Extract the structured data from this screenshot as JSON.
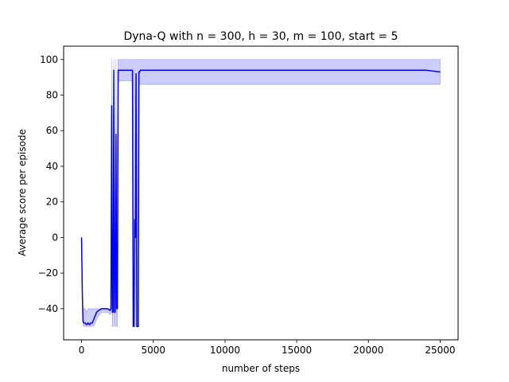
{
  "chart_data": {
    "type": "line",
    "title": "Dyna-Q with n = 300, h = 30, m = 100, start = 5",
    "xlabel": "number of steps",
    "ylabel": "Average score per episode",
    "xlim": [
      -1250,
      26250
    ],
    "ylim": [
      -57.5,
      107.5
    ],
    "xticks": [
      0,
      5000,
      10000,
      15000,
      20000,
      25000
    ],
    "xtick_labels": [
      "0",
      "5000",
      "10000",
      "15000",
      "20000",
      "25000"
    ],
    "yticks": [
      -40,
      -20,
      0,
      20,
      40,
      60,
      80,
      100
    ],
    "ytick_labels": [
      "−40",
      "−20",
      "0",
      "20",
      "40",
      "60",
      "80",
      "100"
    ],
    "grid": false,
    "legend": "none",
    "line_color": "#0000ff",
    "band_color": "#0000ff",
    "band_opacity": 0.2,
    "series": [
      {
        "x": [
          0,
          50,
          100,
          150,
          250,
          350,
          450,
          550,
          650,
          750,
          850,
          950,
          1050,
          1200,
          1400,
          1600,
          1800,
          2000,
          2050,
          2100,
          2150,
          2200,
          2250,
          2300,
          2350,
          2400,
          2450,
          2500,
          2550,
          2600,
          2650,
          2700,
          2750,
          2800,
          2850,
          2900,
          3000,
          3200,
          3400,
          3500,
          3550,
          3600,
          3650,
          3700,
          3750,
          3800,
          3850,
          3900,
          3950,
          4000,
          4050,
          4100,
          4150,
          4200,
          4250,
          4300,
          4350,
          4400,
          4450,
          4500,
          5000,
          6000,
          7000,
          8000,
          9000,
          10000,
          11000,
          12000,
          13000,
          14000,
          15000,
          16000,
          17000,
          18000,
          19000,
          20000,
          21000,
          22000,
          23000,
          24000,
          25000
        ],
        "y": [
          0,
          -30,
          -47,
          -48,
          -48,
          -49,
          -48,
          -49,
          -48,
          -48,
          -46,
          -44,
          -42,
          -41,
          -40,
          -40,
          -40,
          -41,
          -40,
          74,
          -42,
          -42,
          94,
          -42,
          -42,
          58,
          -40,
          -40,
          94,
          94,
          94,
          94,
          94,
          94,
          94,
          94,
          94,
          94,
          94,
          94,
          94,
          -50,
          -50,
          10,
          0,
          92,
          -50,
          -50,
          -50,
          93,
          93,
          94,
          94,
          94,
          94,
          94,
          94,
          94,
          94,
          94,
          94,
          94,
          94,
          94,
          94,
          94,
          94,
          94,
          94,
          94,
          94,
          94,
          94,
          94,
          94,
          94,
          94,
          94,
          94,
          94,
          93
        ],
        "lower": [
          0,
          -30,
          -49,
          -50,
          -50,
          -50,
          -50,
          -50,
          -50,
          -50,
          -50,
          -48,
          -46,
          -44,
          -42,
          -42,
          -42,
          -43,
          -43,
          50,
          -50,
          -50,
          80,
          -50,
          -50,
          30,
          -50,
          -50,
          88,
          88,
          88,
          88,
          88,
          88,
          88,
          88,
          88,
          88,
          88,
          88,
          88,
          -50,
          -50,
          -50,
          -50,
          70,
          -50,
          -50,
          -50,
          86,
          86,
          86,
          86,
          86,
          86,
          86,
          86,
          86,
          86,
          86,
          86,
          86,
          86,
          86,
          86,
          86,
          86,
          86,
          86,
          86,
          86,
          86,
          86,
          86,
          86,
          86,
          86,
          86,
          86,
          86,
          86
        ],
        "upper": [
          0,
          -30,
          -40,
          -40,
          -40,
          -42,
          -40,
          -40,
          -40,
          -40,
          -40,
          -40,
          -40,
          -40,
          -40,
          -40,
          -40,
          -40,
          -38,
          100,
          -30,
          -30,
          100,
          -30,
          -30,
          100,
          -30,
          -30,
          100,
          100,
          100,
          100,
          100,
          100,
          100,
          100,
          100,
          100,
          100,
          100,
          100,
          100,
          100,
          100,
          100,
          100,
          100,
          100,
          100,
          100,
          100,
          100,
          100,
          100,
          100,
          100,
          100,
          100,
          100,
          100,
          100,
          100,
          100,
          100,
          100,
          100,
          100,
          100,
          100,
          100,
          100,
          100,
          100,
          100,
          100,
          100,
          100,
          100,
          100,
          100,
          100
        ]
      }
    ]
  }
}
